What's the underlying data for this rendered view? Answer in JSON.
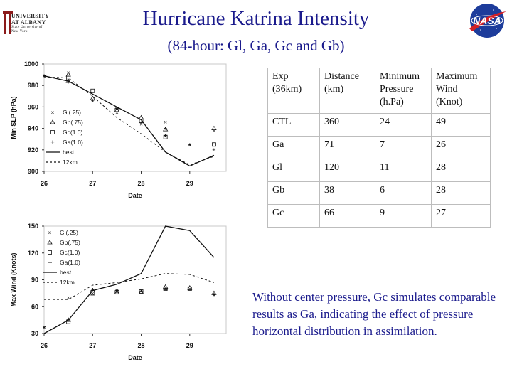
{
  "title": "Hurricane Katrina Intensity",
  "subtitle": "(84-hour: Gl, Ga, Gc and Gb)",
  "logos": {
    "ualbany": {
      "line1": "UNIVERSITY",
      "line2": "AT ALBANY",
      "line3": "State University of New York",
      "color": "#8b1a1a"
    },
    "nasa": {
      "text": "NASA",
      "color": "#1d3c9b",
      "accent": "#d11f26"
    }
  },
  "table": {
    "headers": [
      "Exp (36km)",
      "Distance (km)",
      "Minimum Pressure (h.Pa)",
      "Maximum Wind (Knot)"
    ],
    "rows": [
      [
        "CTL",
        "360",
        "24",
        "49"
      ],
      [
        "Ga",
        "71",
        "7",
        "26"
      ],
      [
        "Gl",
        "120",
        "11",
        "28"
      ],
      [
        "Gb",
        "38",
        "6",
        "28"
      ],
      [
        "Gc",
        "66",
        "9",
        "27"
      ]
    ]
  },
  "note": "Without center pressure, Gc simulates comparable results as Ga, indicating the effect of pressure horizontal distribution in assimilation.",
  "chart_data": [
    {
      "type": "line",
      "ylabel": "Min SLP (hPa)",
      "xlabel": "Date",
      "ylim": [
        900,
        1000
      ],
      "xlim": [
        26,
        29.75
      ],
      "y_ticks": [
        900,
        920,
        940,
        960,
        980,
        1000
      ],
      "x_ticks": [
        26,
        27,
        28,
        29
      ],
      "grid": false,
      "legend_position": "left",
      "series": [
        {
          "name": "Gl(.25)",
          "marker": "x",
          "points": [
            [
              26.5,
              992
            ],
            [
              26.5,
              984
            ],
            [
              27.0,
              966
            ],
            [
              27.5,
              955
            ],
            [
              28.0,
              944
            ],
            [
              28.5,
              946
            ],
            [
              29.5,
              938
            ]
          ]
        },
        {
          "name": "Gb(.75)",
          "marker": "triangle",
          "points": [
            [
              26.5,
              990
            ],
            [
              26.5,
              984
            ],
            [
              27.0,
              968
            ],
            [
              27.5,
              957
            ],
            [
              28.0,
              950
            ],
            [
              28.5,
              939
            ],
            [
              29.5,
              940
            ]
          ]
        },
        {
          "name": "Gc(1.0)",
          "marker": "square",
          "points": [
            [
              26.5,
              987
            ],
            [
              27.0,
              975
            ],
            [
              27.5,
              957
            ],
            [
              28.0,
              947
            ],
            [
              28.5,
              932
            ],
            [
              29.5,
              925
            ]
          ]
        },
        {
          "name": "Ga(1.0)",
          "marker": "plus",
          "points": [
            [
              26.5,
              983
            ],
            [
              27.0,
              966
            ],
            [
              27.5,
              962
            ],
            [
              28.0,
              945
            ],
            [
              28.5,
              940
            ],
            [
              29.5,
              920
            ]
          ]
        },
        {
          "name": "best",
          "style": "solid",
          "points": [
            [
              26.0,
              989
            ],
            [
              26.5,
              984
            ],
            [
              27.0,
              972
            ],
            [
              27.5,
              960
            ],
            [
              28.0,
              948
            ],
            [
              28.5,
              918
            ],
            [
              29.0,
              905
            ],
            [
              29.5,
              915
            ]
          ]
        },
        {
          "name": "12km",
          "style": "dashed",
          "points": [
            [
              26.0,
              988
            ],
            [
              26.5,
              987
            ],
            [
              27.0,
              970
            ],
            [
              27.5,
              950
            ],
            [
              28.0,
              935
            ],
            [
              28.5,
              918
            ],
            [
              29.0,
              906
            ],
            [
              29.5,
              914
            ]
          ]
        }
      ],
      "annotations": [
        {
          "symbol": "*",
          "x": 26.0,
          "y": 988
        },
        {
          "symbol": "*",
          "x": 27.5,
          "y": 958
        },
        {
          "symbol": "*",
          "x": 28.5,
          "y": 932
        },
        {
          "symbol": "*",
          "x": 29.0,
          "y": 924
        }
      ]
    },
    {
      "type": "line",
      "ylabel": "Max Wind (Knots)",
      "xlabel": "Date",
      "ylim": [
        30,
        150
      ],
      "xlim": [
        26,
        29.75
      ],
      "y_ticks": [
        30,
        60,
        90,
        120,
        150
      ],
      "x_ticks": [
        26,
        27,
        28,
        29
      ],
      "grid": false,
      "legend_position": "top-left",
      "series": [
        {
          "name": "Gl(.25)",
          "marker": "x",
          "points": [
            [
              26.5,
              70
            ],
            [
              27.0,
              75
            ],
            [
              27.5,
              78
            ],
            [
              28.0,
              78
            ],
            [
              28.5,
              81
            ],
            [
              29.0,
              80
            ],
            [
              29.5,
              73
            ]
          ]
        },
        {
          "name": "Gb(.75)",
          "marker": "triangle",
          "points": [
            [
              26.5,
              45
            ],
            [
              27.0,
              78
            ],
            [
              27.5,
              76
            ],
            [
              28.0,
              76
            ],
            [
              28.5,
              82
            ],
            [
              29.0,
              81
            ],
            [
              29.5,
              75
            ]
          ]
        },
        {
          "name": "Gc(1.0)",
          "marker": "square",
          "points": [
            [
              26.5,
              43
            ],
            [
              27.0,
              76
            ],
            [
              27.5,
              76
            ],
            [
              28.0,
              77
            ],
            [
              28.5,
              80
            ],
            [
              29.0,
              80
            ]
          ]
        },
        {
          "name": "Ga(1.0)",
          "marker": "dash",
          "points": [
            [
              26.5,
              45
            ],
            [
              27.0,
              73
            ],
            [
              27.5,
              76
            ],
            [
              28.0,
              77
            ],
            [
              28.5,
              79
            ],
            [
              29.0,
              79
            ]
          ]
        },
        {
          "name": "best",
          "style": "solid",
          "points": [
            [
              26.0,
              30
            ],
            [
              26.5,
              45
            ],
            [
              27.0,
              78
            ],
            [
              27.5,
              85
            ],
            [
              28.0,
              97
            ],
            [
              28.5,
              150
            ],
            [
              29.0,
              145
            ],
            [
              29.5,
              115
            ]
          ]
        },
        {
          "name": "12km",
          "style": "dashed",
          "points": [
            [
              26.0,
              68
            ],
            [
              26.5,
              68
            ],
            [
              27.0,
              84
            ],
            [
              27.5,
              87
            ],
            [
              28.0,
              91
            ],
            [
              28.5,
              97
            ],
            [
              29.0,
              96
            ],
            [
              29.5,
              87
            ]
          ]
        }
      ],
      "annotations": [
        {
          "symbol": "*",
          "x": 26.0,
          "y": 36
        },
        {
          "symbol": "*",
          "x": 27.0,
          "y": 78
        },
        {
          "symbol": "*",
          "x": 27.5,
          "y": 77
        },
        {
          "symbol": "*",
          "x": 29.5,
          "y": 73
        }
      ]
    }
  ]
}
